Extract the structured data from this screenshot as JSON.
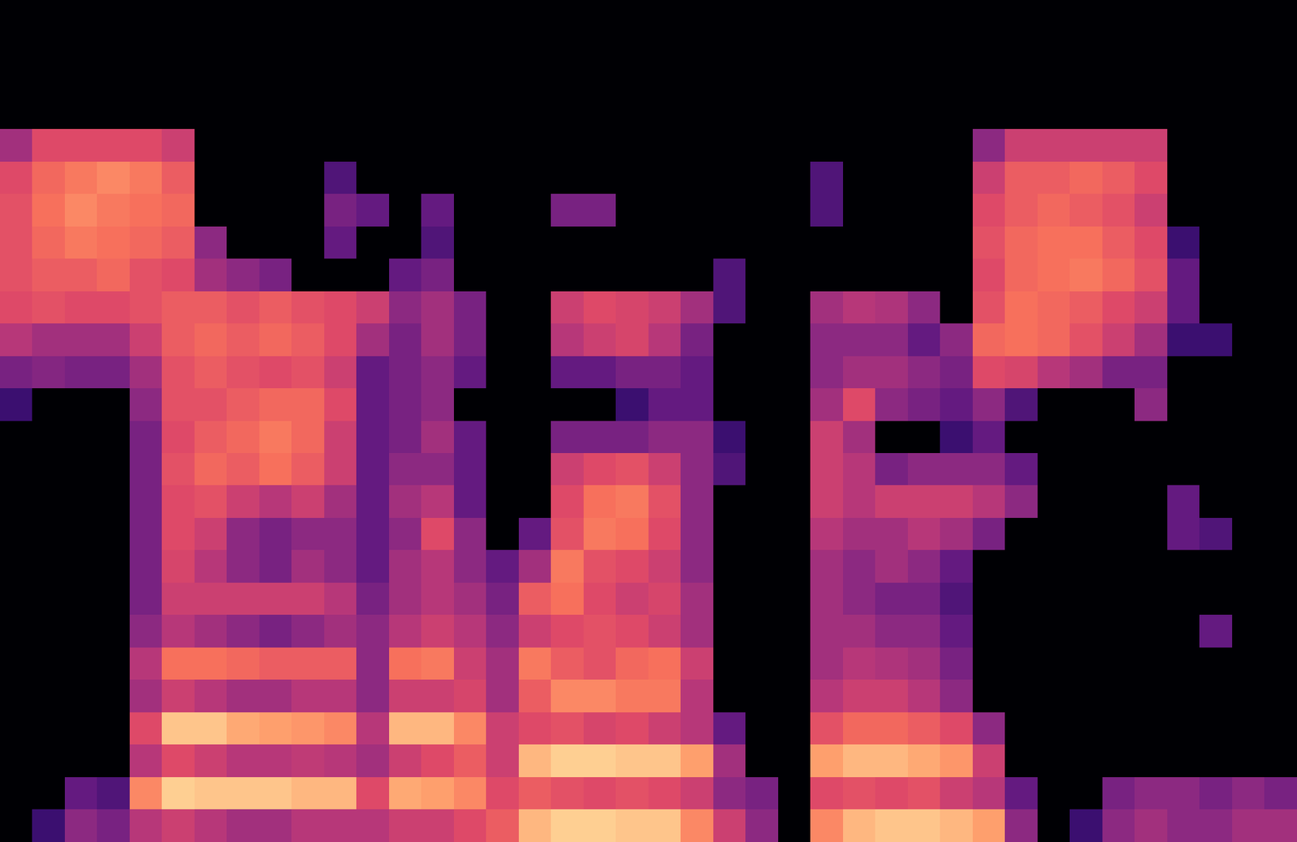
{
  "chart_data": {
    "type": "heatmap",
    "color": "magma",
    "grid": false,
    "tick_labels": false,
    "xlim": [
      0,
      40
    ],
    "ylim": [
      0,
      26
    ],
    "zlim": [
      0,
      100
    ],
    "cells": [
      [
        0,
        0,
        0,
        0,
        0,
        0,
        0,
        0,
        0,
        0,
        0,
        0,
        0,
        0,
        0,
        0,
        0,
        0,
        0,
        0,
        0,
        0,
        0,
        0,
        0,
        0,
        0,
        0,
        0,
        0,
        0,
        0,
        0,
        0,
        0,
        0,
        0,
        0,
        0,
        0
      ],
      [
        0,
        0,
        0,
        0,
        0,
        0,
        0,
        0,
        0,
        0,
        0,
        0,
        0,
        0,
        0,
        0,
        0,
        0,
        0,
        0,
        0,
        0,
        0,
        0,
        0,
        0,
        0,
        0,
        0,
        0,
        0,
        0,
        0,
        0,
        0,
        0,
        0,
        0,
        0,
        0
      ],
      [
        0,
        0,
        0,
        0,
        0,
        0,
        0,
        0,
        0,
        0,
        0,
        0,
        0,
        0,
        0,
        0,
        0,
        0,
        0,
        0,
        0,
        0,
        0,
        0,
        0,
        0,
        0,
        0,
        0,
        0,
        0,
        0,
        0,
        0,
        0,
        0,
        0,
        0,
        0,
        0
      ],
      [
        0,
        0,
        0,
        0,
        0,
        0,
        0,
        0,
        0,
        0,
        0,
        0,
        0,
        0,
        0,
        0,
        0,
        0,
        0,
        0,
        0,
        0,
        0,
        0,
        0,
        0,
        0,
        0,
        0,
        0,
        0,
        0,
        0,
        0,
        0,
        0,
        0,
        0,
        0,
        0
      ],
      [
        45,
        60,
        60,
        60,
        60,
        55,
        0,
        0,
        0,
        0,
        0,
        0,
        0,
        0,
        0,
        0,
        0,
        0,
        0,
        0,
        0,
        0,
        0,
        0,
        0,
        0,
        0,
        0,
        0,
        0,
        40,
        55,
        55,
        55,
        55,
        55,
        0,
        0,
        0,
        0
      ],
      [
        60,
        68,
        72,
        75,
        72,
        65,
        0,
        0,
        0,
        0,
        25,
        0,
        0,
        0,
        0,
        0,
        0,
        0,
        0,
        0,
        0,
        0,
        0,
        0,
        0,
        25,
        0,
        0,
        0,
        0,
        55,
        65,
        65,
        68,
        65,
        60,
        0,
        0,
        0,
        0
      ],
      [
        62,
        70,
        75,
        72,
        70,
        68,
        0,
        0,
        0,
        0,
        35,
        30,
        0,
        30,
        0,
        0,
        0,
        35,
        35,
        0,
        0,
        0,
        0,
        0,
        0,
        25,
        0,
        0,
        0,
        0,
        60,
        65,
        68,
        65,
        62,
        55,
        0,
        0,
        0,
        0
      ],
      [
        62,
        68,
        72,
        70,
        68,
        65,
        40,
        0,
        0,
        0,
        30,
        0,
        0,
        25,
        0,
        0,
        0,
        0,
        0,
        0,
        0,
        0,
        0,
        0,
        0,
        0,
        0,
        0,
        0,
        0,
        62,
        68,
        70,
        70,
        65,
        60,
        20,
        0,
        0,
        0
      ],
      [
        62,
        65,
        65,
        68,
        62,
        60,
        45,
        40,
        35,
        0,
        0,
        0,
        30,
        35,
        0,
        0,
        0,
        0,
        0,
        0,
        0,
        0,
        25,
        0,
        0,
        0,
        0,
        0,
        0,
        0,
        60,
        68,
        70,
        72,
        68,
        62,
        30,
        0,
        0,
        0
      ],
      [
        60,
        62,
        60,
        60,
        62,
        65,
        65,
        62,
        65,
        62,
        60,
        55,
        40,
        45,
        35,
        0,
        0,
        55,
        60,
        58,
        55,
        45,
        25,
        0,
        0,
        45,
        50,
        48,
        40,
        0,
        62,
        70,
        68,
        65,
        60,
        55,
        30,
        0,
        0,
        0
      ],
      [
        50,
        45,
        45,
        45,
        55,
        65,
        68,
        65,
        68,
        65,
        60,
        45,
        35,
        45,
        35,
        0,
        0,
        50,
        55,
        58,
        50,
        35,
        0,
        0,
        0,
        40,
        40,
        40,
        30,
        40,
        68,
        70,
        68,
        62,
        55,
        45,
        20,
        20,
        0,
        0
      ],
      [
        35,
        38,
        35,
        35,
        45,
        62,
        65,
        62,
        60,
        62,
        55,
        30,
        35,
        40,
        30,
        0,
        0,
        30,
        30,
        35,
        35,
        30,
        0,
        0,
        0,
        40,
        45,
        45,
        40,
        35,
        60,
        58,
        50,
        45,
        35,
        35,
        0,
        0,
        0,
        0
      ],
      [
        20,
        0,
        0,
        0,
        40,
        62,
        62,
        65,
        68,
        68,
        60,
        30,
        35,
        40,
        0,
        0,
        0,
        0,
        0,
        20,
        30,
        30,
        0,
        0,
        0,
        45,
        60,
        40,
        35,
        30,
        40,
        25,
        0,
        0,
        0,
        40,
        0,
        0,
        0,
        0
      ],
      [
        0,
        0,
        0,
        0,
        35,
        60,
        65,
        68,
        72,
        68,
        55,
        30,
        35,
        45,
        30,
        0,
        0,
        35,
        35,
        35,
        40,
        40,
        20,
        0,
        0,
        55,
        45,
        0,
        0,
        20,
        30,
        0,
        0,
        0,
        0,
        0,
        0,
        0,
        0,
        0
      ],
      [
        0,
        0,
        0,
        0,
        35,
        62,
        68,
        65,
        70,
        65,
        55,
        30,
        40,
        40,
        30,
        0,
        0,
        55,
        60,
        62,
        55,
        40,
        25,
        0,
        0,
        55,
        50,
        35,
        40,
        40,
        40,
        30,
        0,
        0,
        0,
        0,
        0,
        0,
        0,
        0
      ],
      [
        0,
        0,
        0,
        0,
        35,
        60,
        62,
        55,
        50,
        55,
        45,
        30,
        45,
        50,
        30,
        0,
        0,
        60,
        70,
        72,
        62,
        40,
        0,
        0,
        0,
        55,
        50,
        55,
        55,
        55,
        50,
        40,
        0,
        0,
        0,
        0,
        30,
        0,
        0,
        0
      ],
      [
        0,
        0,
        0,
        0,
        35,
        60,
        55,
        40,
        35,
        40,
        40,
        30,
        40,
        60,
        40,
        0,
        30,
        62,
        72,
        70,
        60,
        40,
        0,
        0,
        0,
        50,
        45,
        45,
        50,
        45,
        35,
        0,
        0,
        0,
        0,
        0,
        30,
        25,
        0,
        0
      ],
      [
        0,
        0,
        0,
        0,
        35,
        58,
        50,
        40,
        35,
        45,
        40,
        30,
        45,
        50,
        40,
        30,
        45,
        72,
        62,
        60,
        55,
        40,
        0,
        0,
        0,
        45,
        40,
        45,
        40,
        30,
        0,
        0,
        0,
        0,
        0,
        0,
        0,
        0,
        0,
        0
      ],
      [
        0,
        0,
        0,
        0,
        35,
        55,
        55,
        55,
        55,
        55,
        50,
        35,
        45,
        50,
        45,
        35,
        65,
        70,
        60,
        55,
        58,
        45,
        0,
        0,
        0,
        45,
        40,
        35,
        35,
        25,
        0,
        0,
        0,
        0,
        0,
        0,
        0,
        0,
        0,
        0
      ],
      [
        0,
        0,
        0,
        0,
        40,
        50,
        45,
        40,
        35,
        40,
        45,
        40,
        50,
        55,
        50,
        40,
        55,
        60,
        62,
        60,
        55,
        45,
        0,
        0,
        0,
        45,
        45,
        40,
        40,
        30,
        0,
        0,
        0,
        0,
        0,
        0,
        0,
        30,
        0,
        0
      ],
      [
        0,
        0,
        0,
        0,
        50,
        70,
        70,
        68,
        65,
        65,
        65,
        40,
        70,
        72,
        55,
        45,
        72,
        65,
        62,
        68,
        70,
        55,
        0,
        0,
        0,
        45,
        50,
        48,
        45,
        35,
        0,
        0,
        0,
        0,
        0,
        0,
        0,
        0,
        0,
        0
      ],
      [
        0,
        0,
        0,
        0,
        45,
        55,
        50,
        45,
        45,
        50,
        50,
        40,
        55,
        55,
        58,
        45,
        65,
        75,
        75,
        72,
        72,
        50,
        0,
        0,
        0,
        50,
        55,
        55,
        50,
        40,
        0,
        0,
        0,
        0,
        0,
        0,
        0,
        0,
        0,
        0
      ],
      [
        0,
        0,
        0,
        0,
        60,
        88,
        88,
        82,
        80,
        78,
        75,
        50,
        85,
        85,
        75,
        55,
        60,
        62,
        58,
        60,
        55,
        50,
        30,
        0,
        0,
        62,
        68,
        68,
        65,
        60,
        40,
        0,
        0,
        0,
        0,
        0,
        0,
        0,
        0,
        0
      ],
      [
        0,
        0,
        0,
        0,
        50,
        60,
        55,
        50,
        50,
        52,
        50,
        45,
        55,
        60,
        65,
        55,
        85,
        90,
        90,
        88,
        88,
        80,
        45,
        0,
        0,
        80,
        85,
        85,
        82,
        78,
        55,
        0,
        0,
        0,
        0,
        0,
        0,
        0,
        0,
        0
      ],
      [
        0,
        0,
        30,
        25,
        75,
        90,
        88,
        88,
        88,
        85,
        85,
        60,
        82,
        80,
        75,
        60,
        65,
        62,
        60,
        62,
        60,
        55,
        40,
        35,
        0,
        60,
        62,
        60,
        62,
        55,
        50,
        30,
        0,
        0,
        35,
        40,
        40,
        35,
        40,
        35
      ],
      [
        0,
        20,
        40,
        35,
        50,
        55,
        50,
        45,
        45,
        50,
        50,
        50,
        55,
        55,
        60,
        65,
        85,
        90,
        90,
        88,
        88,
        75,
        55,
        40,
        0,
        75,
        85,
        88,
        88,
        85,
        80,
        40,
        0,
        20,
        40,
        45,
        40,
        40,
        45,
        45
      ]
    ]
  }
}
